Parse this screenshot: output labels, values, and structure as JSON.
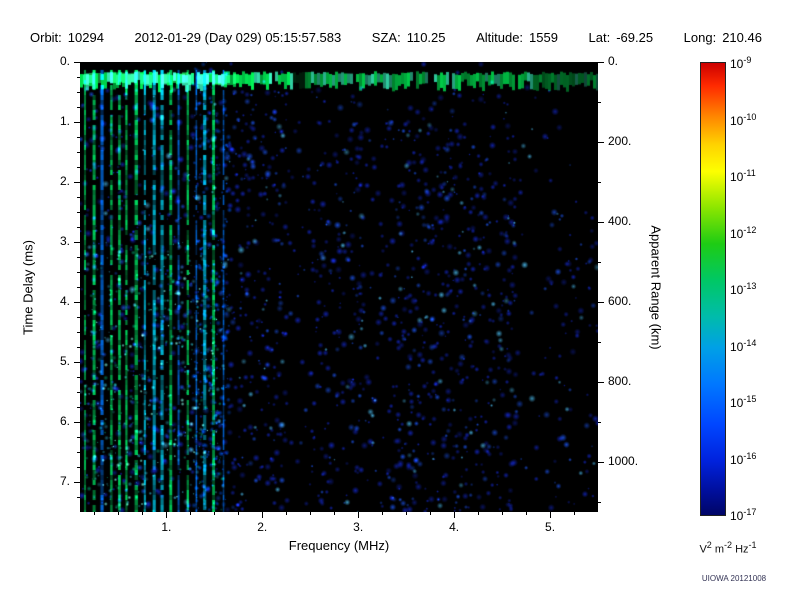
{
  "header": {
    "fields": [
      {
        "name": "orbit",
        "label": "Orbit:",
        "value": "10294"
      },
      {
        "name": "datetime",
        "label": "",
        "value": "2012-01-29 (Day 029) 05:15:57.583"
      },
      {
        "name": "sza",
        "label": "SZA:",
        "value": "110.25"
      },
      {
        "name": "altitude",
        "label": "Altitude:",
        "value": "1559"
      },
      {
        "name": "lat",
        "label": "Lat:",
        "value": "-69.25"
      },
      {
        "name": "long",
        "label": "Long:",
        "value": "210.46"
      }
    ]
  },
  "chart_data": {
    "type": "heatmap",
    "title": "",
    "xlabel": "Frequency (MHz)",
    "ylabel_left": "Time Delay (ms)",
    "ylabel_right": "Apparent Range (km)",
    "x_range_mhz": [
      0.1,
      5.5
    ],
    "y_range_ms": [
      0,
      7.5
    ],
    "y_range_km": [
      0,
      1125
    ],
    "x_major_ticks": [
      {
        "v": 1,
        "label": "1."
      },
      {
        "v": 2,
        "label": "2."
      },
      {
        "v": 3,
        "label": "3."
      },
      {
        "v": 4,
        "label": "4."
      },
      {
        "v": 5,
        "label": "5."
      }
    ],
    "y_major_ticks_ms": [
      {
        "v": 0,
        "label": "0."
      },
      {
        "v": 1,
        "label": "1."
      },
      {
        "v": 2,
        "label": "2."
      },
      {
        "v": 3,
        "label": "3."
      },
      {
        "v": 4,
        "label": "4."
      },
      {
        "v": 5,
        "label": "5."
      },
      {
        "v": 6,
        "label": "6."
      },
      {
        "v": 7,
        "label": "7."
      }
    ],
    "y_major_ticks_km": [
      {
        "v": 0,
        "label": "0."
      },
      {
        "v": 200,
        "label": "200."
      },
      {
        "v": 400,
        "label": "400."
      },
      {
        "v": 600,
        "label": "600."
      },
      {
        "v": 800,
        "label": "800."
      },
      {
        "v": 1000,
        "label": "1000."
      }
    ],
    "background_color": "#000000",
    "features": {
      "surface_band": {
        "time_ms": [
          0.17,
          0.38
        ],
        "freq_mhz": [
          0.1,
          5.5
        ],
        "color": "#00ff5a",
        "alt_color": "#40ffc8",
        "gap_freq_mhz": [
          2.3,
          2.42
        ],
        "note": "bright mottled green horizontal echo band near zero delay"
      },
      "vertical_stripes": {
        "freq_start_mhz": 0.14,
        "freq_end_mhz": 1.62,
        "approx_count": 17,
        "colors": [
          "#00ff6e",
          "#00dcff",
          "#0078ff"
        ],
        "note": "narrow full-height green/cyan harmonic stripes at low frequency"
      },
      "speckle": {
        "base_density": 0.3,
        "main_color": "#1428c8",
        "bright_color": "#1e5aff",
        "cyan_color": "#50c8ff",
        "dense_freq_mhz": [
          [
            0.1,
            1.62
          ],
          [
            1.62,
            2.25
          ],
          [
            2.5,
            3.1
          ],
          [
            3.35,
            4.65
          ]
        ],
        "dense_values": [
          0.5,
          0.55,
          0.5,
          0.62
        ],
        "sparse_freq_mhz": [
          [
            2.25,
            2.5
          ],
          [
            4.65,
            5.0
          ]
        ],
        "sparse_value": 0.14,
        "note": "scattered faint blue noise blobs over black background"
      }
    },
    "colorbar": {
      "label_base": "10",
      "exponents": [
        "-9",
        "-10",
        "-11",
        "-12",
        "-13",
        "-14",
        "-15",
        "-16",
        "-17"
      ],
      "unit_parts": [
        {
          "base": "V",
          "exp": "2"
        },
        {
          "base": "m",
          "exp": "-2"
        },
        {
          "base": "Hz",
          "exp": "-1"
        }
      ],
      "gradient_stops": [
        {
          "color": "#cc0000",
          "pos": 0
        },
        {
          "color": "#ff2a00",
          "pos": 5
        },
        {
          "color": "#ff8800",
          "pos": 12
        },
        {
          "color": "#ffd200",
          "pos": 18
        },
        {
          "color": "#fdff00",
          "pos": 24
        },
        {
          "color": "#8ce600",
          "pos": 32
        },
        {
          "color": "#1ecc14",
          "pos": 40
        },
        {
          "color": "#00c864",
          "pos": 48
        },
        {
          "color": "#00bcaa",
          "pos": 56
        },
        {
          "color": "#00a0e6",
          "pos": 63
        },
        {
          "color": "#0078ff",
          "pos": 71
        },
        {
          "color": "#0046ff",
          "pos": 80
        },
        {
          "color": "#0022dd",
          "pos": 88
        },
        {
          "color": "#000e99",
          "pos": 95
        },
        {
          "color": "#000566",
          "pos": 100
        }
      ]
    }
  },
  "watermark": "UIOWA 20121008"
}
